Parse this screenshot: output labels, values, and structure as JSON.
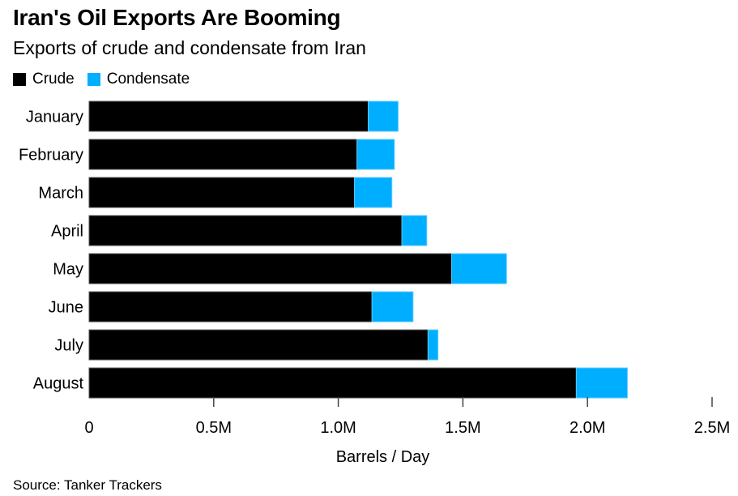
{
  "title": "Iran's Oil Exports Are Booming",
  "subtitle": "Exports of crude and condensate from Iran",
  "source": "Source: Tanker Trackers",
  "colors": {
    "crude": "#000000",
    "condensate": "#00AEFF"
  },
  "chart_data": {
    "type": "bar",
    "orientation": "horizontal",
    "stacked": true,
    "title": "Iran's Oil Exports Are Booming",
    "subtitle": "Exports of crude and condensate from Iran",
    "xlabel": "Barrels / Day",
    "ylabel": "",
    "categories": [
      "January",
      "February",
      "March",
      "April",
      "May",
      "June",
      "July",
      "August"
    ],
    "series": [
      {
        "name": "Crude",
        "color": "#000000",
        "values": [
          1120000,
          1075000,
          1065000,
          1255000,
          1455000,
          1135000,
          1360000,
          1955000
        ]
      },
      {
        "name": "Condensate",
        "color": "#00AEFF",
        "values": [
          120000,
          150000,
          150000,
          100000,
          220000,
          165000,
          40000,
          205000
        ]
      }
    ],
    "xlim": [
      0,
      2500000
    ],
    "xticks": [
      0,
      500000,
      1000000,
      1500000,
      2000000,
      2500000
    ],
    "xtick_labels": [
      "0",
      "0.5M",
      "1.0M",
      "1.5M",
      "2.0M",
      "2.5M"
    ],
    "legend": {
      "position": "top-left",
      "entries": [
        "Crude",
        "Condensate"
      ]
    },
    "grid": false
  }
}
